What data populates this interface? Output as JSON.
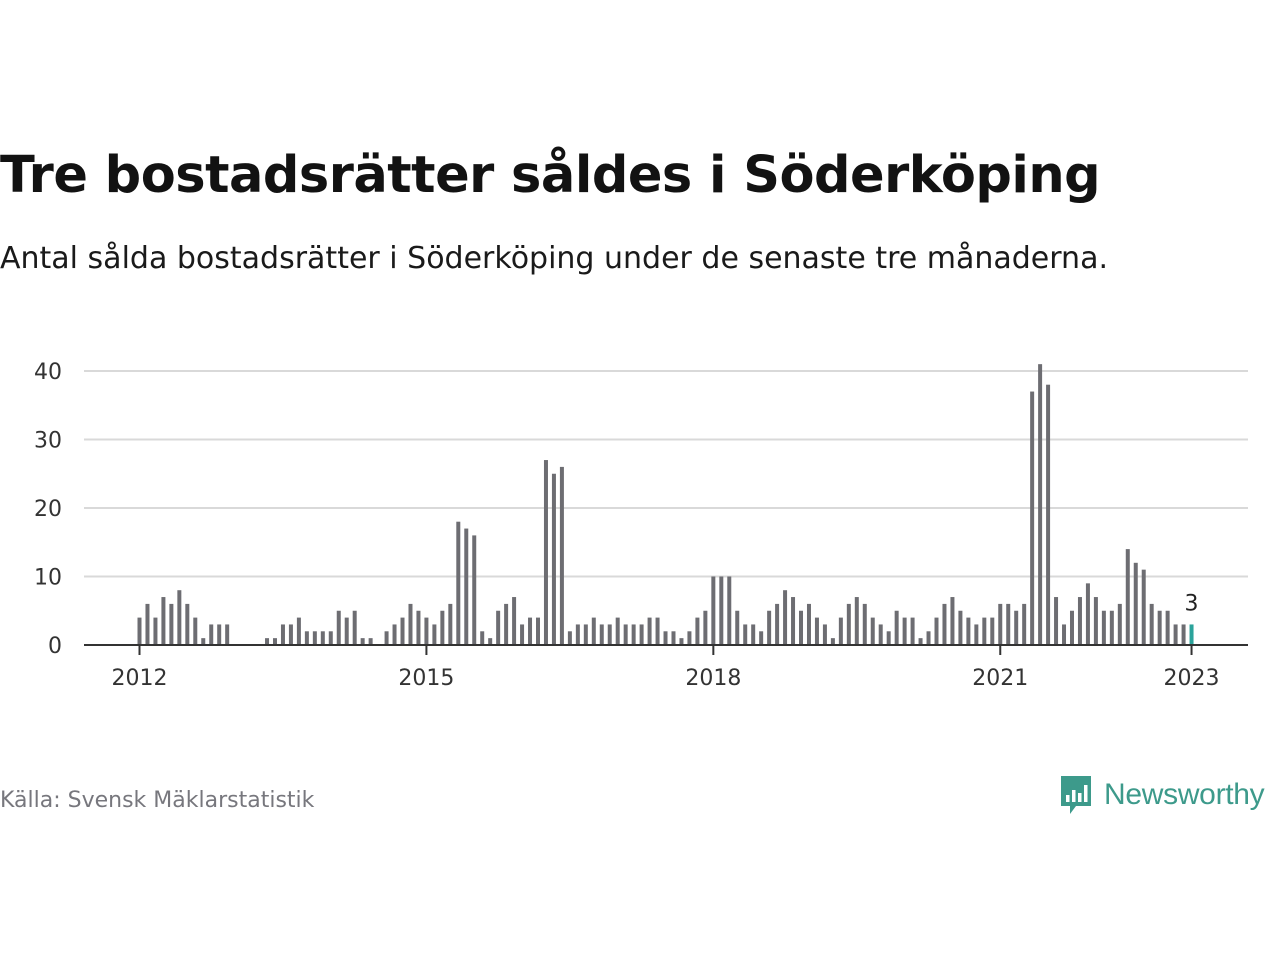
{
  "title": "Tre bostadsrätter såldes i Söderköping",
  "subtitle": "Antal sålda bostadsrätter i Söderköping under de senaste tre månaderna.",
  "source": "Källa: Svensk Mäklarstatistik",
  "logo": {
    "text": "Newsworthy",
    "icon": "newsworthy-bar-chart-icon"
  },
  "colors": {
    "bar": "#6d6d72",
    "highlight": "#2ba39b",
    "grid": "#d9d9d9",
    "axis": "#333333",
    "brand": "#3d9a8b"
  },
  "chart_data": {
    "type": "bar",
    "x_start": "2012-01",
    "interval": "month",
    "ylim": [
      0,
      40
    ],
    "yticks": [
      0,
      10,
      20,
      30,
      40
    ],
    "xticks": [
      "2012",
      "2015",
      "2018",
      "2021",
      "2023"
    ],
    "grid": true,
    "highlight_last": true,
    "last_label": "3",
    "values": [
      4,
      6,
      4,
      7,
      6,
      8,
      6,
      4,
      1,
      3,
      3,
      3,
      null,
      null,
      null,
      null,
      1,
      1,
      3,
      3,
      4,
      2,
      2,
      2,
      2,
      5,
      4,
      5,
      1,
      1,
      null,
      2,
      3,
      4,
      6,
      5,
      4,
      3,
      5,
      6,
      18,
      17,
      16,
      2,
      1,
      5,
      6,
      7,
      3,
      4,
      4,
      27,
      25,
      26,
      2,
      3,
      3,
      4,
      3,
      3,
      4,
      3,
      3,
      3,
      4,
      4,
      2,
      2,
      1,
      2,
      4,
      5,
      10,
      10,
      10,
      5,
      3,
      3,
      2,
      5,
      6,
      8,
      7,
      5,
      6,
      4,
      3,
      1,
      4,
      6,
      7,
      6,
      4,
      3,
      2,
      5,
      4,
      4,
      1,
      2,
      4,
      6,
      7,
      5,
      4,
      3,
      4,
      4,
      6,
      6,
      5,
      6,
      37,
      41,
      38,
      7,
      3,
      5,
      7,
      9,
      7,
      5,
      5,
      6,
      14,
      12,
      11,
      6,
      5,
      5,
      3,
      3,
      3
    ]
  }
}
